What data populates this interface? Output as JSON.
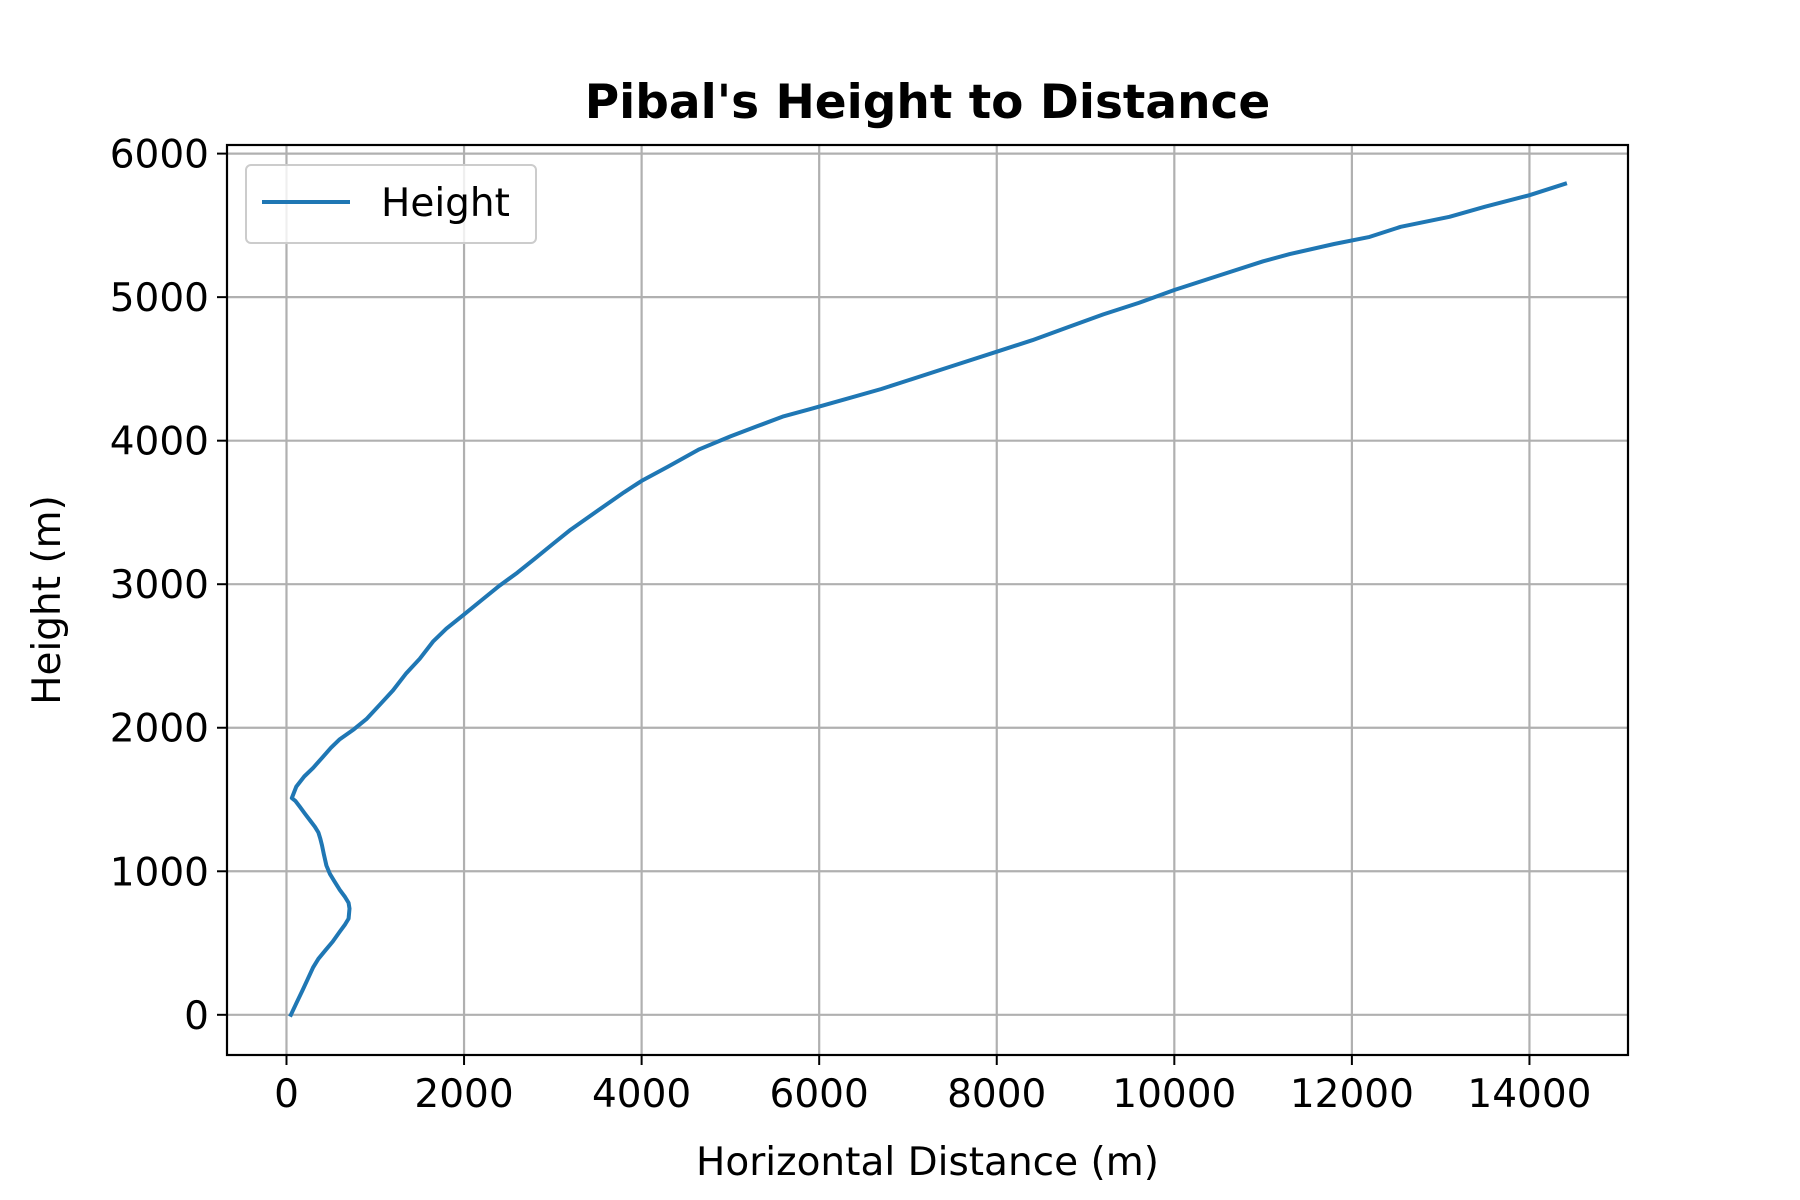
{
  "chart_data": {
    "type": "line",
    "title": "Pibal's Height to Distance",
    "xlabel": "Horizontal Distance (m)",
    "ylabel": "Height (m)",
    "xlim": [
      -670,
      15110
    ],
    "ylim": [
      -280,
      6060
    ],
    "xticks": [
      0,
      2000,
      4000,
      6000,
      8000,
      10000,
      12000,
      14000
    ],
    "yticks": [
      0,
      1000,
      2000,
      3000,
      4000,
      5000,
      6000
    ],
    "grid": true,
    "legend_position": "upper left",
    "series": [
      {
        "name": "Height",
        "color": "#1f77b4",
        "x": [
          50,
          110,
          180,
          240,
          300,
          360,
          440,
          520,
          600,
          660,
          700,
          710,
          700,
          660,
          600,
          540,
          490,
          450,
          420,
          400,
          380,
          360,
          320,
          270,
          210,
          150,
          100,
          60,
          110,
          200,
          300,
          400,
          500,
          600,
          760,
          900,
          1050,
          1200,
          1350,
          1500,
          1650,
          1800,
          2000,
          2200,
          2400,
          2600,
          2800,
          3000,
          3200,
          3500,
          3800,
          4000,
          4300,
          4650,
          5000,
          5300,
          5600,
          5900,
          6300,
          6700,
          7000,
          7500,
          8000,
          8400,
          8800,
          9200,
          9600,
          10000,
          10500,
          11000,
          11300,
          11800,
          12200,
          12550,
          13100,
          13500,
          14000,
          14400
        ],
        "y": [
          0,
          80,
          170,
          250,
          330,
          390,
          450,
          510,
          580,
          630,
          670,
          740,
          780,
          820,
          870,
          930,
          980,
          1040,
          1120,
          1180,
          1230,
          1270,
          1310,
          1350,
          1400,
          1450,
          1490,
          1510,
          1590,
          1660,
          1720,
          1790,
          1860,
          1920,
          1990,
          2060,
          2160,
          2260,
          2380,
          2480,
          2600,
          2690,
          2790,
          2890,
          2990,
          3080,
          3180,
          3280,
          3380,
          3510,
          3640,
          3720,
          3820,
          3940,
          4030,
          4100,
          4170,
          4220,
          4290,
          4360,
          4420,
          4520,
          4620,
          4700,
          4790,
          4880,
          4960,
          5050,
          5150,
          5250,
          5300,
          5370,
          5420,
          5490,
          5560,
          5630,
          5710,
          5790
        ]
      }
    ]
  }
}
